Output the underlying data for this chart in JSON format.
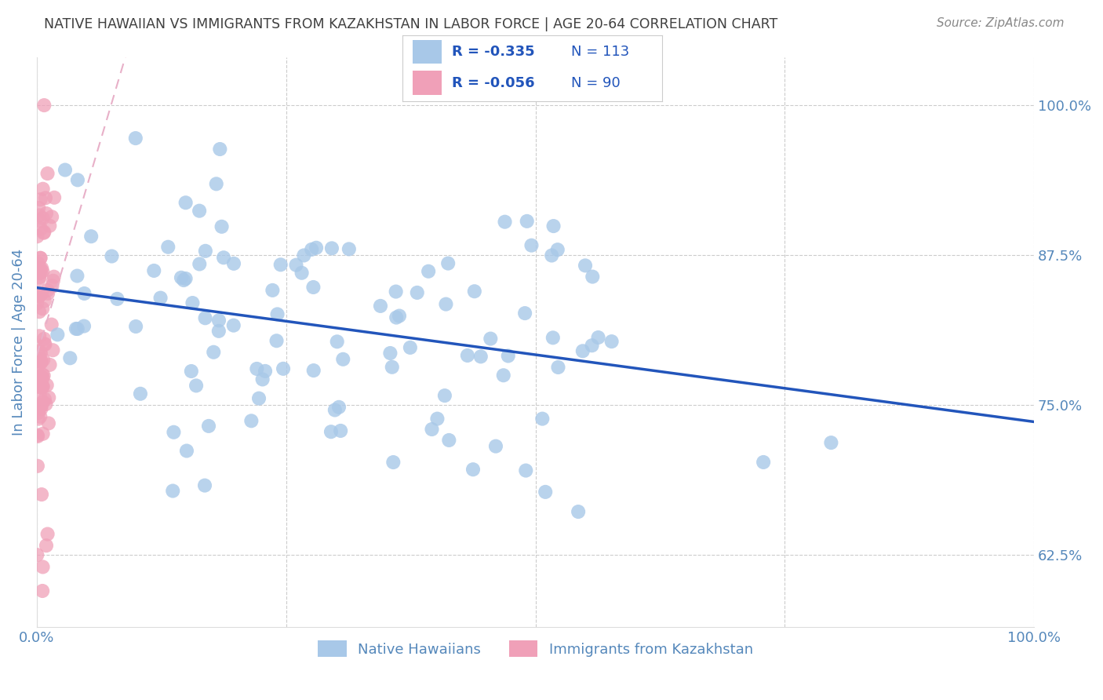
{
  "title": "NATIVE HAWAIIAN VS IMMIGRANTS FROM KAZAKHSTAN IN LABOR FORCE | AGE 20-64 CORRELATION CHART",
  "source": "Source: ZipAtlas.com",
  "ylabel": "In Labor Force | Age 20-64",
  "ytick_labels": [
    "62.5%",
    "75.0%",
    "87.5%",
    "100.0%"
  ],
  "ytick_values": [
    0.625,
    0.75,
    0.875,
    1.0
  ],
  "xlim": [
    0.0,
    1.0
  ],
  "ylim": [
    0.565,
    1.04
  ],
  "legend_r1": "R = -0.335",
  "legend_n1": "N = 113",
  "legend_r2": "R = -0.056",
  "legend_n2": "N = 90",
  "blue_color": "#a8c8e8",
  "pink_color": "#f0a0b8",
  "blue_line_color": "#2255bb",
  "pink_line_color": "#e8b0c8",
  "title_color": "#404040",
  "axis_label_color": "#5588bb",
  "n_blue": 113,
  "n_pink": 90,
  "R_blue": -0.335,
  "R_pink": -0.056
}
